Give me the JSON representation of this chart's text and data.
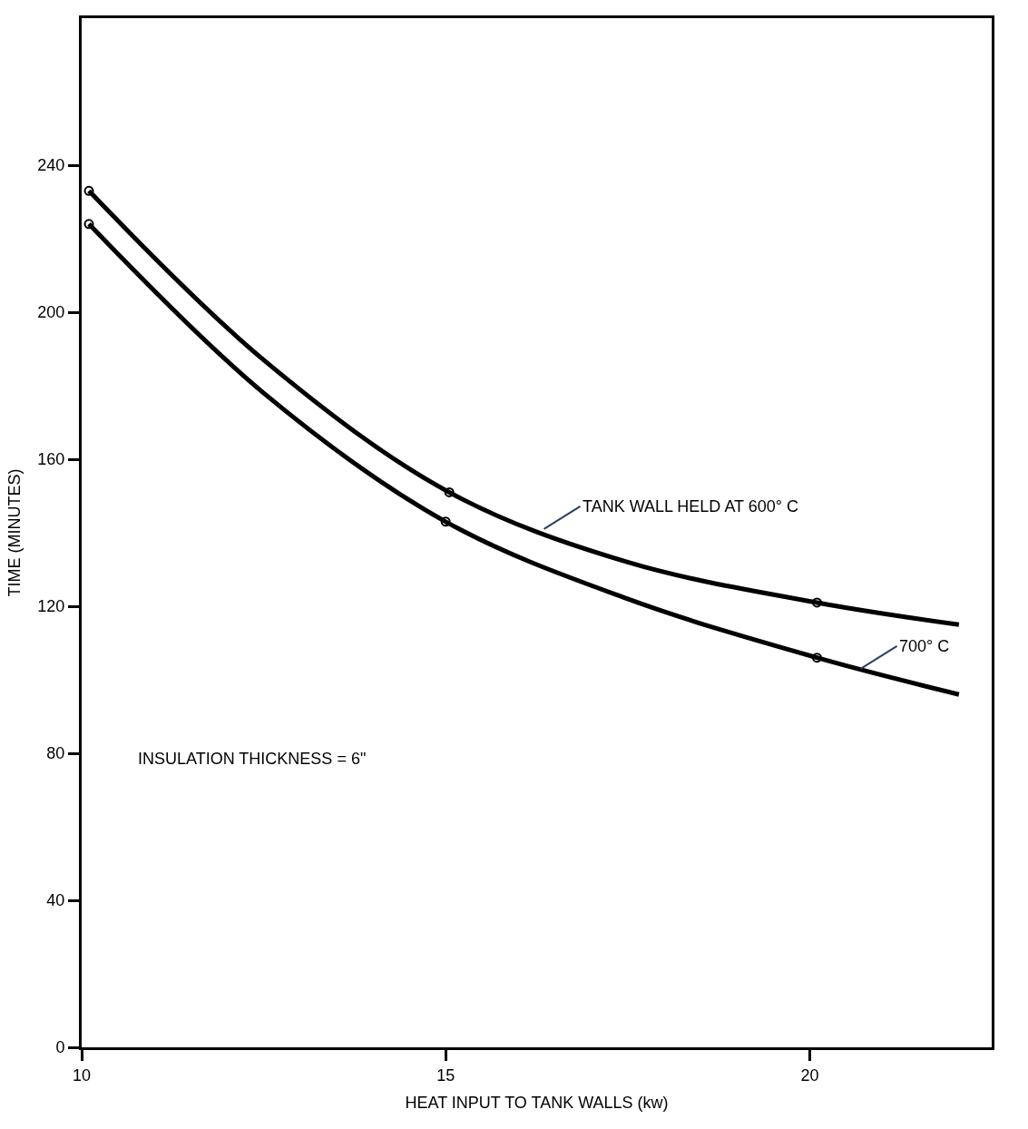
{
  "chart_data": {
    "type": "line",
    "xlabel": "HEAT INPUT TO TANK WALLS (kw)",
    "ylabel": "TIME (MINUTES)",
    "xlim": [
      10,
      22.5
    ],
    "ylim": [
      0,
      280
    ],
    "xticks": [
      10,
      15,
      20
    ],
    "yticks": [
      0,
      40,
      80,
      120,
      160,
      200,
      240
    ],
    "line_style": "solid",
    "series": [
      {
        "color": "#000000",
        "marker": "none",
        "x": [
          10.1,
          12.5,
          15.05,
          17.5,
          20.1,
          22.05
        ],
        "values": [
          233,
          187,
          151,
          132,
          121,
          115
        ]
      },
      {
        "color": "#000000",
        "marker": "none",
        "x": [
          10.1,
          12.5,
          15.0,
          17.5,
          20.1,
          22.05
        ],
        "values": [
          224,
          178,
          143,
          122,
          106,
          96
        ]
      },
      {
        "type": "scatter",
        "color": "#000000",
        "marker": "circle",
        "x": [
          10.1,
          15.05,
          20.1
        ],
        "values": [
          233,
          151,
          121
        ]
      },
      {
        "type": "scatter",
        "color": "#000000",
        "marker": "circle",
        "x": [
          10.1,
          15.0,
          20.1
        ],
        "values": [
          224,
          143,
          106
        ]
      }
    ],
    "annotations": [
      {
        "text": "TANK WALL HELD AT 600° C",
        "x": 16.35,
        "y": 141
      },
      {
        "text": "700° C",
        "x": 20.7,
        "y": 103
      },
      "INSULATION THICKNESS = 6\""
    ]
  }
}
